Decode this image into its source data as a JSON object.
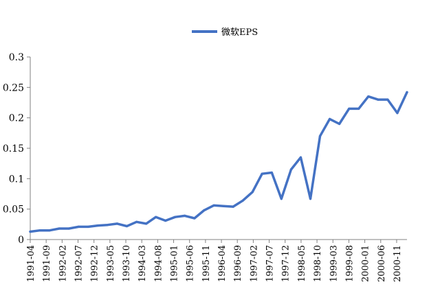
{
  "chart_data": {
    "type": "line",
    "legend_position": "top-center",
    "grid": false,
    "series": [
      {
        "name": "微软EPS",
        "color": "#4472C4",
        "values": [
          0.013,
          0.015,
          0.015,
          0.018,
          0.018,
          0.021,
          0.021,
          0.023,
          0.024,
          0.026,
          0.022,
          0.029,
          0.026,
          0.037,
          0.031,
          0.037,
          0.039,
          0.035,
          0.048,
          0.056,
          0.055,
          0.054,
          0.064,
          0.078,
          0.108,
          0.11,
          0.067,
          0.115,
          0.135,
          0.067,
          0.17,
          0.198,
          0.19,
          0.215,
          0.215,
          0.235,
          0.23,
          0.23,
          0.208,
          0.242
        ]
      }
    ],
    "x_labels": [
      "1991-04",
      "1991-09",
      "1992-02",
      "1992-07",
      "1992-12",
      "1993-05",
      "1993-10",
      "1994-03",
      "1994-08",
      "1995-01",
      "1995-06",
      "1995-11",
      "1996-04",
      "1996-09",
      "1997-02",
      "1997-07",
      "1997-12",
      "1998-05",
      "1998-10",
      "1999-03",
      "1999-08",
      "2000-01",
      "2000-06",
      "2000-11"
    ],
    "ylim": [
      0,
      0.3
    ],
    "y_ticks": [
      "0",
      "0.05",
      "0.1",
      "0.15",
      "0.2",
      "0.25",
      "0.3"
    ],
    "y_tick_values": [
      0,
      0.05,
      0.1,
      0.15,
      0.2,
      0.25,
      0.3
    ]
  }
}
